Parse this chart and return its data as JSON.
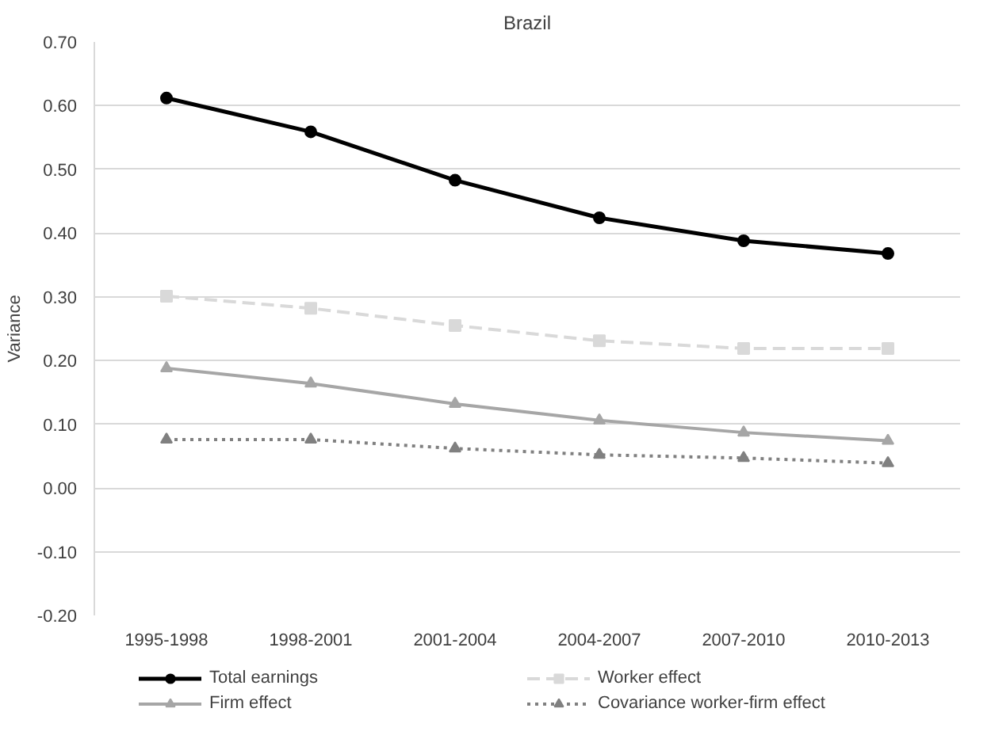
{
  "chart_data": {
    "type": "line",
    "title": "Brazil",
    "ylabel": "Variance",
    "categories": [
      "1995-1998",
      "1998-2001",
      "2001-2004",
      "2004-2007",
      "2007-2010",
      "2010-2013"
    ],
    "ylim": [
      -0.2,
      0.7
    ],
    "yticks": [
      {
        "value": -0.2,
        "label": "-0.20"
      },
      {
        "value": -0.1,
        "label": "-0.10"
      },
      {
        "value": 0,
        "label": "0.00"
      },
      {
        "value": 0.1,
        "label": "0.10"
      },
      {
        "value": 0.2,
        "label": "0.20"
      },
      {
        "value": 0.3,
        "label": "0.30"
      },
      {
        "value": 0.4,
        "label": "0.40"
      },
      {
        "value": 0.5,
        "label": "0.50"
      },
      {
        "value": 0.6,
        "label": "0.60"
      },
      {
        "value": 0.7,
        "label": "0.70"
      }
    ],
    "grid": "y",
    "legend": "bottom",
    "series": [
      {
        "name": "Total earnings",
        "color": "#000000",
        "marker": "circle",
        "line_style": "solid",
        "values": [
          0.612,
          0.559,
          0.483,
          0.424,
          0.388,
          0.368
        ]
      },
      {
        "name": "Worker effect",
        "color": "#d9d9d9",
        "marker": "square",
        "line_style": "dashed",
        "values": [
          0.301,
          0.282,
          0.255,
          0.231,
          0.219,
          0.219
        ]
      },
      {
        "name": "Firm effect",
        "color": "#a6a6a6",
        "marker": "triangle",
        "line_style": "solid",
        "values": [
          0.188,
          0.164,
          0.132,
          0.106,
          0.087,
          0.074
        ]
      },
      {
        "name": "Covariance worker-firm effect",
        "color": "#808080",
        "marker": "triangle",
        "line_style": "dotted",
        "values": [
          0.076,
          0.076,
          0.062,
          0.052,
          0.047,
          0.039
        ]
      }
    ]
  }
}
